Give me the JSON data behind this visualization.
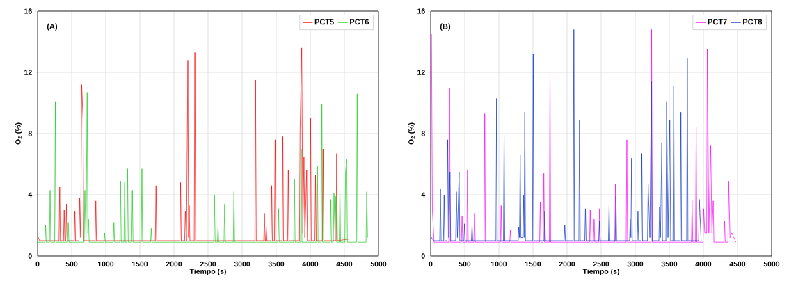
{
  "chart_data": [
    {
      "type": "line",
      "annotations": [
        "(A)"
      ],
      "xlabel": "Tiempo (s)",
      "ylabel": "O$_{2}$ (%)",
      "xlim": [
        0,
        5000
      ],
      "ylim": [
        0,
        16
      ],
      "xticks": [
        0,
        500,
        1000,
        1500,
        2000,
        2500,
        3000,
        3500,
        4000,
        4500,
        5000
      ],
      "yticks": [
        0,
        4,
        8,
        12,
        16
      ],
      "grid": true,
      "legend": "top right",
      "series": [
        {
          "name": "PCT5",
          "color": "#ff0000",
          "x": [
            0,
            30,
            314,
            324,
            334,
            380,
            390,
            400,
            414,
            424,
            434,
            537,
            547,
            557,
            607,
            617,
            632,
            647,
            667,
            677,
            844,
            854,
            864,
            1727,
            1737,
            1747,
            2087,
            2097,
            2107,
            2157,
            2167,
            2184,
            2204,
            2214,
            2224,
            2234,
            2297,
            2307,
            2317,
            3187,
            3197,
            3207,
            3317,
            3327,
            3337,
            3344,
            3354,
            3364,
            3424,
            3434,
            3444,
            3474,
            3484,
            3494,
            3587,
            3597,
            3607,
            3667,
            3677,
            3687,
            3840,
            3850,
            3874,
            3890,
            3907,
            3920,
            3947,
            3957,
            3994,
            4004,
            4014,
            4067,
            4077,
            4087,
            4177,
            4187,
            4197,
            4377,
            4387,
            4397,
            4560
          ],
          "values": [
            1.3,
            1.0,
            1.0,
            4.5,
            1.0,
            1.0,
            3.0,
            1.0,
            1.0,
            3.4,
            1.0,
            1.0,
            2.9,
            1.0,
            1.0,
            3.8,
            1.2,
            11.2,
            8.9,
            1.0,
            1.0,
            3.6,
            1.0,
            1.0,
            4.6,
            1.0,
            1.0,
            4.8,
            1.0,
            1.0,
            2.9,
            1.0,
            12.8,
            1.2,
            3.3,
            1.0,
            1.0,
            13.3,
            1.0,
            1.0,
            11.5,
            1.0,
            1.0,
            2.8,
            1.0,
            1.0,
            1.9,
            1.0,
            1.0,
            4.6,
            1.0,
            1.0,
            7.6,
            1.0,
            1.0,
            7.8,
            1.0,
            1.0,
            5.6,
            1.0,
            1.0,
            8.2,
            13.6,
            1.5,
            6.5,
            1.2,
            5.6,
            1.0,
            1.0,
            9.0,
            1.0,
            1.0,
            5.3,
            1.0,
            1.0,
            7.0,
            1.0,
            1.0,
            6.7,
            1.0,
            1.1
          ]
        },
        {
          "name": "PCT6",
          "color": "#1ec81e",
          "x": [
            0,
            107,
            117,
            127,
            174,
            184,
            194,
            250,
            260,
            270,
            440,
            450,
            460,
            683,
            693,
            710,
            727,
            737,
            747,
            757,
            974,
            984,
            994,
            1110,
            1120,
            1130,
            1207,
            1217,
            1227,
            1267,
            1277,
            1287,
            1310,
            1320,
            1330,
            1380,
            1390,
            1400,
            1520,
            1530,
            1540,
            1657,
            1667,
            1677,
            2584,
            2594,
            2604,
            2637,
            2647,
            2657,
            2734,
            2744,
            2754,
            2870,
            2880,
            2890,
            3524,
            3534,
            3544,
            3757,
            3767,
            3777,
            3857,
            3867,
            3877,
            4094,
            4104,
            4114,
            4160,
            4170,
            4180,
            4290,
            4300,
            4310,
            4337,
            4347,
            4362,
            4377,
            4387,
            4424,
            4434,
            4444,
            4507,
            4517,
            4534,
            4544,
            4677,
            4687,
            4697,
            4817,
            4827,
            4840
          ],
          "values": [
            0.9,
            0.9,
            2.0,
            0.9,
            0.9,
            4.3,
            0.9,
            0.9,
            10.1,
            0.9,
            0.9,
            2.2,
            0.9,
            0.9,
            4.3,
            1.0,
            10.7,
            1.5,
            2.4,
            0.9,
            0.9,
            1.5,
            0.9,
            0.9,
            2.2,
            0.9,
            0.9,
            4.9,
            0.9,
            0.9,
            4.8,
            0.9,
            0.9,
            5.7,
            0.9,
            0.9,
            4.3,
            0.9,
            0.9,
            5.7,
            0.9,
            0.9,
            1.8,
            0.9,
            0.9,
            4.0,
            0.9,
            0.9,
            1.9,
            0.9,
            0.9,
            3.4,
            0.9,
            0.9,
            4.2,
            0.9,
            0.9,
            3.1,
            0.9,
            0.9,
            5.0,
            0.9,
            0.9,
            7.0,
            0.9,
            0.9,
            5.9,
            0.9,
            0.9,
            9.9,
            0.9,
            0.9,
            3.7,
            0.9,
            0.9,
            4.1,
            1.5,
            3.9,
            0.9,
            0.9,
            4.4,
            0.9,
            0.9,
            5.5,
            6.3,
            0.9,
            0.9,
            10.6,
            0.9,
            0.9,
            4.2,
            1.2
          ]
        }
      ]
    },
    {
      "type": "line",
      "annotations": [
        "(B)"
      ],
      "xlabel": "Tiempo (s)",
      "ylabel": "O$_{2}$ (%)",
      "xlim": [
        0,
        5000
      ],
      "ylim": [
        0,
        16
      ],
      "xticks": [
        0,
        500,
        1000,
        1500,
        2000,
        2500,
        3000,
        3500,
        4000,
        4500,
        5000
      ],
      "yticks": [
        0,
        4,
        8,
        12,
        16
      ],
      "grid": true,
      "legend": "top right",
      "series": [
        {
          "name": "PCT7",
          "color": "#ff00ff",
          "x": [
            12,
            25,
            50,
            267,
            277,
            287,
            450,
            460,
            470,
            530,
            540,
            550,
            633,
            643,
            653,
            783,
            793,
            803,
            1023,
            1033,
            1043,
            1160,
            1170,
            1180,
            1597,
            1607,
            1617,
            1650,
            1660,
            1670,
            1740,
            1750,
            1760,
            2330,
            2340,
            2350,
            2387,
            2397,
            2407,
            2467,
            2477,
            2487,
            2700,
            2710,
            2720,
            2867,
            2877,
            2887,
            3230,
            3240,
            3250,
            3824,
            3834,
            3844,
            3884,
            3894,
            3904,
            3994,
            4004,
            4020,
            4047,
            4057,
            4080,
            4107,
            4125,
            4144,
            4154,
            4300,
            4310,
            4320,
            4360,
            4370,
            4390,
            4417,
            4477
          ],
          "values": [
            14.5,
            3.0,
            0.9,
            0.9,
            11.0,
            0.9,
            0.9,
            2.6,
            0.9,
            0.9,
            5.6,
            0.9,
            0.9,
            2.8,
            0.9,
            0.9,
            9.3,
            0.9,
            0.9,
            3.3,
            0.9,
            0.9,
            1.7,
            0.9,
            0.9,
            3.5,
            0.9,
            0.9,
            5.4,
            0.9,
            0.9,
            12.2,
            0.9,
            0.9,
            3.0,
            0.9,
            0.9,
            2.4,
            0.9,
            0.9,
            3.1,
            0.9,
            0.9,
            4.7,
            0.9,
            0.9,
            7.6,
            0.9,
            0.9,
            14.8,
            0.9,
            0.9,
            3.6,
            0.9,
            0.9,
            8.4,
            0.9,
            0.9,
            3.1,
            1.5,
            1.5,
            13.5,
            1.5,
            7.2,
            1.5,
            3.6,
            0.9,
            0.9,
            2.3,
            0.9,
            0.9,
            4.9,
            1.2,
            1.5,
            0.9
          ]
        },
        {
          "name": "PCT8",
          "color": "#0a32c8",
          "x": [
            0,
            40,
            133,
            143,
            153,
            187,
            197,
            207,
            240,
            250,
            265,
            283,
            293,
            367,
            377,
            392,
            417,
            427,
            487,
            497,
            507,
            597,
            607,
            617,
            957,
            967,
            977,
            1067,
            1077,
            1087,
            1283,
            1293,
            1303,
            1313,
            1323,
            1350,
            1360,
            1370,
            1380,
            1390,
            1493,
            1503,
            1513,
            1663,
            1673,
            1683,
            1957,
            1967,
            1977,
            2090,
            2100,
            2110,
            2173,
            2183,
            2193,
            2260,
            2270,
            2280,
            2467,
            2477,
            2487,
            2607,
            2617,
            2627,
            2707,
            2717,
            2727,
            2917,
            2927,
            2937,
            2947,
            2957,
            3030,
            3040,
            3050,
            3087,
            3097,
            3107,
            3180,
            3190,
            3215,
            3237,
            3247,
            3347,
            3357,
            3370,
            3390,
            3400,
            3450,
            3460,
            3480,
            3507,
            3520,
            3554,
            3564,
            3574,
            3660,
            3670,
            3680,
            3754,
            3764,
            3774,
            3930,
            3940,
            3967
          ],
          "values": [
            1.3,
            1.0,
            1.0,
            4.4,
            1.0,
            1.0,
            4.0,
            1.0,
            1.0,
            7.6,
            1.2,
            5.5,
            1.0,
            1.0,
            4.2,
            1.2,
            5.5,
            1.0,
            1.0,
            2.1,
            1.0,
            1.0,
            2.0,
            1.0,
            1.0,
            10.3,
            1.0,
            1.0,
            7.9,
            1.0,
            1.0,
            1.9,
            1.2,
            6.6,
            1.2,
            1.2,
            4.0,
            1.2,
            9.4,
            1.0,
            1.0,
            13.2,
            1.0,
            1.0,
            2.9,
            1.0,
            1.0,
            2.0,
            1.0,
            1.0,
            14.8,
            1.0,
            1.0,
            8.9,
            1.0,
            1.0,
            3.1,
            1.0,
            1.0,
            2.3,
            1.0,
            1.0,
            3.3,
            1.0,
            1.0,
            3.9,
            1.0,
            1.0,
            2.4,
            1.2,
            6.4,
            1.0,
            1.0,
            2.9,
            1.0,
            1.0,
            6.7,
            1.0,
            1.0,
            4.7,
            1.2,
            11.4,
            1.0,
            1.0,
            3.2,
            1.2,
            7.4,
            1.0,
            1.0,
            10.1,
            1.2,
            8.9,
            1.0,
            1.0,
            11.1,
            1.0,
            1.0,
            9.4,
            1.0,
            1.0,
            12.9,
            1.0,
            1.0,
            3.7,
            1.0
          ]
        }
      ]
    }
  ]
}
